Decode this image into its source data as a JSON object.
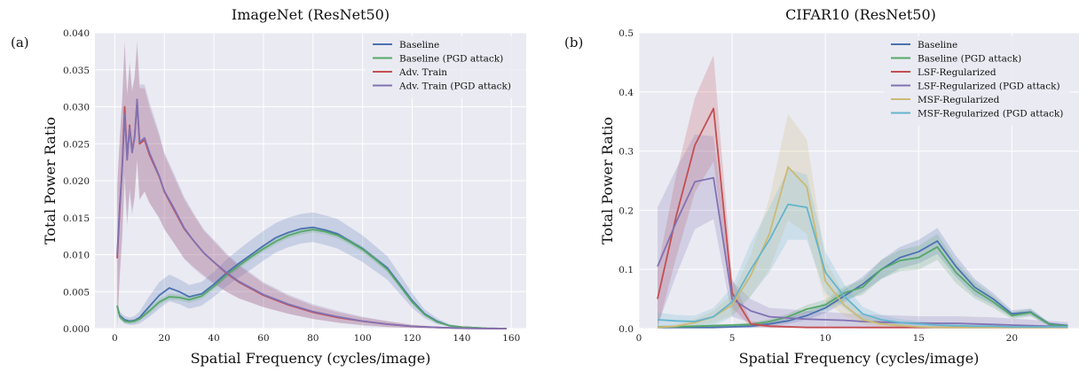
{
  "chart_data": [
    {
      "type": "line",
      "panel_label": "(a)",
      "title": "ImageNet (ResNet50)",
      "xlabel": "Spatial Frequency (cycles/image)",
      "ylabel": "Total Power Ratio",
      "xlim": [
        -8,
        166
      ],
      "ylim": [
        0,
        0.04
      ],
      "xticks": [
        0,
        20,
        40,
        60,
        80,
        100,
        120,
        140,
        160
      ],
      "yticks": [
        0.0,
        0.005,
        0.01,
        0.015,
        0.02,
        0.025,
        0.03,
        0.035,
        0.04
      ],
      "ytick_labels": [
        "0.000",
        "0.005",
        "0.010",
        "0.015",
        "0.020",
        "0.025",
        "0.030",
        "0.035",
        "0.040"
      ],
      "grid": true,
      "legend_position": "top-right",
      "series": [
        {
          "name": "Baseline",
          "color": "#4c72b0",
          "x": [
            1,
            2,
            4,
            6,
            8,
            10,
            14,
            18,
            22,
            26,
            30,
            35,
            40,
            45,
            50,
            55,
            60,
            65,
            70,
            75,
            80,
            85,
            90,
            95,
            100,
            105,
            110,
            115,
            120,
            125,
            130,
            135,
            140,
            150,
            158
          ],
          "y": [
            0.003,
            0.0018,
            0.0012,
            0.001,
            0.0011,
            0.0015,
            0.003,
            0.0045,
            0.0055,
            0.005,
            0.0043,
            0.0047,
            0.006,
            0.0075,
            0.0088,
            0.01,
            0.0112,
            0.0123,
            0.013,
            0.0135,
            0.0137,
            0.0133,
            0.0128,
            0.0118,
            0.0108,
            0.0095,
            0.0082,
            0.006,
            0.0038,
            0.002,
            0.001,
            0.0004,
            0.0002,
            5e-05,
            0.0
          ],
          "band": [
            0.0005,
            0.0005,
            0.0005,
            0.0005,
            0.0006,
            0.0008,
            0.0014,
            0.0018,
            0.0018,
            0.0017,
            0.0016,
            0.0016,
            0.0017,
            0.0018,
            0.0019,
            0.002,
            0.002,
            0.002,
            0.002,
            0.002,
            0.002,
            0.002,
            0.002,
            0.0019,
            0.0018,
            0.0017,
            0.0016,
            0.0013,
            0.001,
            0.0006,
            0.0004,
            0.0002,
            0.0001,
            5e-05,
            0.0
          ]
        },
        {
          "name": "Baseline (PGD attack)",
          "color": "#55a868",
          "x": [
            1,
            2,
            4,
            6,
            8,
            10,
            14,
            18,
            22,
            26,
            30,
            35,
            40,
            45,
            50,
            55,
            60,
            65,
            70,
            75,
            80,
            85,
            90,
            95,
            100,
            105,
            110,
            115,
            120,
            125,
            130,
            135,
            140,
            150,
            158
          ],
          "y": [
            0.0031,
            0.0016,
            0.001,
            0.0009,
            0.001,
            0.0013,
            0.0024,
            0.0036,
            0.0043,
            0.0042,
            0.0039,
            0.0044,
            0.0057,
            0.0072,
            0.0085,
            0.0097,
            0.0108,
            0.0118,
            0.0126,
            0.0131,
            0.0134,
            0.0131,
            0.0126,
            0.0117,
            0.0107,
            0.0094,
            0.008,
            0.0058,
            0.0036,
            0.0019,
            0.0009,
            0.0004,
            0.0002,
            5e-05,
            0.0
          ],
          "band": [
            0.0003,
            0.0003,
            0.0003,
            0.0003,
            0.0003,
            0.0003,
            0.0004,
            0.0004,
            0.0004,
            0.0004,
            0.0004,
            0.0004,
            0.0004,
            0.0004,
            0.0004,
            0.0004,
            0.0004,
            0.0004,
            0.0004,
            0.0004,
            0.0004,
            0.0004,
            0.0004,
            0.0004,
            0.0004,
            0.0004,
            0.0004,
            0.0003,
            0.0003,
            0.0002,
            0.0001,
            0.0001,
            0.0,
            0.0,
            0.0
          ]
        },
        {
          "name": "Adv. Train",
          "color": "#c44e52",
          "x": [
            1,
            2,
            3,
            4,
            5,
            6,
            7,
            8,
            9,
            10,
            12,
            14,
            16,
            18,
            20,
            24,
            28,
            32,
            36,
            40,
            45,
            50,
            60,
            70,
            80,
            90,
            100,
            110,
            120,
            130,
            140,
            150,
            158
          ],
          "y": [
            0.0095,
            0.016,
            0.022,
            0.03,
            0.023,
            0.0275,
            0.024,
            0.026,
            0.0305,
            0.025,
            0.0255,
            0.0235,
            0.022,
            0.0205,
            0.0185,
            0.016,
            0.0135,
            0.0118,
            0.0102,
            0.009,
            0.0075,
            0.0063,
            0.0045,
            0.0032,
            0.0022,
            0.0015,
            0.001,
            0.0006,
            0.0003,
            0.00015,
            5e-05,
            0.0,
            0.0
          ],
          "band": [
            0.0095,
            0.009,
            0.009,
            0.009,
            0.0085,
            0.0085,
            0.008,
            0.008,
            0.0078,
            0.0075,
            0.007,
            0.0065,
            0.006,
            0.0055,
            0.005,
            0.0045,
            0.004,
            0.0035,
            0.003,
            0.0028,
            0.0025,
            0.0022,
            0.0016,
            0.0012,
            0.0009,
            0.0007,
            0.0005,
            0.0004,
            0.0002,
            0.0001,
            5e-05,
            0.0,
            0.0
          ]
        },
        {
          "name": "Adv. Train (PGD attack)",
          "color": "#8172b3",
          "x": [
            1,
            2,
            3,
            4,
            5,
            6,
            7,
            8,
            9,
            10,
            12,
            14,
            16,
            18,
            20,
            24,
            28,
            32,
            36,
            40,
            45,
            50,
            60,
            70,
            80,
            90,
            100,
            110,
            120,
            130,
            140,
            150,
            158
          ],
          "y": [
            0.01,
            0.0165,
            0.0215,
            0.029,
            0.0228,
            0.0272,
            0.0238,
            0.0258,
            0.031,
            0.0252,
            0.0258,
            0.0238,
            0.0222,
            0.0206,
            0.0186,
            0.0162,
            0.0136,
            0.0118,
            0.0102,
            0.009,
            0.0076,
            0.0064,
            0.0046,
            0.0033,
            0.0023,
            0.0016,
            0.001,
            0.0006,
            0.0003,
            0.00015,
            5e-05,
            0.0,
            0.0
          ],
          "band": [
            0.0095,
            0.0095,
            0.0095,
            0.0092,
            0.009,
            0.0088,
            0.0085,
            0.0082,
            0.008,
            0.0078,
            0.0072,
            0.0068,
            0.0063,
            0.0058,
            0.0052,
            0.0047,
            0.0042,
            0.0037,
            0.0032,
            0.003,
            0.0026,
            0.0023,
            0.0017,
            0.0013,
            0.001,
            0.0008,
            0.0006,
            0.0004,
            0.0002,
            0.0001,
            5e-05,
            0.0,
            0.0
          ]
        }
      ]
    },
    {
      "type": "line",
      "panel_label": "(b)",
      "title": "CIFAR10 (ResNet50)",
      "xlabel": "Spatial Frequency (cycles/image)",
      "ylabel": "Total Power Ratio",
      "xlim": [
        0,
        23.6
      ],
      "ylim": [
        0,
        0.5
      ],
      "xticks": [
        0,
        5,
        10,
        15,
        20
      ],
      "yticks": [
        0.0,
        0.1,
        0.2,
        0.3,
        0.4,
        0.5
      ],
      "ytick_labels": [
        "0.0",
        "0.1",
        "0.2",
        "0.3",
        "0.4",
        "0.5"
      ],
      "grid": true,
      "legend_position": "top-right",
      "series": [
        {
          "name": "Baseline",
          "color": "#4c72b0",
          "x": [
            1,
            2,
            3,
            4,
            5,
            6,
            7,
            8,
            9,
            10,
            11,
            12,
            13,
            14,
            15,
            16,
            17,
            18,
            19,
            20,
            21,
            22,
            23
          ],
          "y": [
            0.002,
            0.002,
            0.002,
            0.002,
            0.003,
            0.004,
            0.008,
            0.013,
            0.022,
            0.035,
            0.055,
            0.075,
            0.1,
            0.12,
            0.13,
            0.148,
            0.105,
            0.07,
            0.05,
            0.025,
            0.028,
            0.008,
            0.005
          ],
          "band": [
            0.002,
            0.002,
            0.002,
            0.002,
            0.002,
            0.003,
            0.004,
            0.005,
            0.007,
            0.009,
            0.011,
            0.013,
            0.016,
            0.018,
            0.02,
            0.022,
            0.018,
            0.014,
            0.01,
            0.006,
            0.006,
            0.003,
            0.002
          ]
        },
        {
          "name": "Baseline (PGD attack)",
          "color": "#55a868",
          "x": [
            1,
            2,
            3,
            4,
            5,
            6,
            7,
            8,
            9,
            10,
            11,
            12,
            13,
            14,
            15,
            16,
            17,
            18,
            19,
            20,
            21,
            22,
            23
          ],
          "y": [
            0.003,
            0.003,
            0.004,
            0.005,
            0.006,
            0.007,
            0.012,
            0.02,
            0.033,
            0.04,
            0.06,
            0.07,
            0.1,
            0.115,
            0.12,
            0.138,
            0.095,
            0.065,
            0.045,
            0.022,
            0.027,
            0.007,
            0.004
          ],
          "band": [
            0.002,
            0.002,
            0.002,
            0.002,
            0.002,
            0.003,
            0.004,
            0.005,
            0.007,
            0.009,
            0.011,
            0.013,
            0.016,
            0.018,
            0.02,
            0.022,
            0.018,
            0.014,
            0.01,
            0.006,
            0.006,
            0.003,
            0.002
          ]
        },
        {
          "name": "LSF-Regularized",
          "color": "#c44e52",
          "x": [
            1,
            2,
            3,
            4,
            5,
            6,
            7,
            8,
            9,
            10,
            11,
            12,
            13,
            14,
            15,
            16,
            17,
            18,
            19,
            20,
            21,
            22,
            23
          ],
          "y": [
            0.05,
            0.19,
            0.31,
            0.372,
            0.06,
            0.008,
            0.004,
            0.003,
            0.002,
            0.002,
            0.002,
            0.002,
            0.002,
            0.002,
            0.002,
            0.002,
            0.002,
            0.002,
            0.002,
            0.002,
            0.002,
            0.002,
            0.002
          ],
          "band": [
            0.05,
            0.07,
            0.08,
            0.09,
            0.025,
            0.005,
            0.003,
            0.002,
            0.001,
            0.001,
            0.001,
            0.001,
            0.001,
            0.001,
            0.001,
            0.001,
            0.001,
            0.001,
            0.001,
            0.001,
            0.001,
            0.001,
            0.001
          ]
        },
        {
          "name": "LSF-Regularized (PGD attack)",
          "color": "#8172b3",
          "x": [
            1,
            2,
            3,
            4,
            5,
            6,
            7,
            8,
            9,
            10,
            11,
            12,
            13,
            14,
            15,
            16,
            17,
            18,
            19,
            20,
            21,
            22,
            23
          ],
          "y": [
            0.105,
            0.18,
            0.248,
            0.255,
            0.05,
            0.03,
            0.02,
            0.018,
            0.016,
            0.015,
            0.014,
            0.012,
            0.011,
            0.01,
            0.009,
            0.009,
            0.009,
            0.008,
            0.007,
            0.006,
            0.005,
            0.004,
            0.003
          ],
          "band": [
            0.1,
            0.09,
            0.08,
            0.07,
            0.03,
            0.02,
            0.015,
            0.015,
            0.014,
            0.013,
            0.012,
            0.012,
            0.012,
            0.012,
            0.012,
            0.012,
            0.012,
            0.012,
            0.012,
            0.011,
            0.01,
            0.009,
            0.008
          ]
        },
        {
          "name": "MSF-Regularized",
          "color": "#ccb974",
          "x": [
            1,
            2,
            3,
            4,
            5,
            6,
            7,
            8,
            9,
            10,
            11,
            12,
            13,
            14,
            15,
            16,
            17,
            18,
            19,
            20,
            21,
            22,
            23
          ],
          "y": [
            0.002,
            0.004,
            0.01,
            0.02,
            0.04,
            0.09,
            0.16,
            0.273,
            0.24,
            0.08,
            0.04,
            0.015,
            0.008,
            0.005,
            0.003,
            0.002,
            0.002,
            0.002,
            0.002,
            0.002,
            0.002,
            0.002,
            0.002
          ],
          "band": [
            0.002,
            0.003,
            0.006,
            0.01,
            0.018,
            0.035,
            0.06,
            0.09,
            0.08,
            0.035,
            0.018,
            0.008,
            0.005,
            0.003,
            0.002,
            0.001,
            0.001,
            0.001,
            0.001,
            0.001,
            0.001,
            0.001,
            0.001
          ]
        },
        {
          "name": "MSF-Regularized (PGD attack)",
          "color": "#64b5cd",
          "x": [
            1,
            2,
            3,
            4,
            5,
            6,
            7,
            8,
            9,
            10,
            11,
            12,
            13,
            14,
            15,
            16,
            17,
            18,
            19,
            20,
            21,
            22,
            23
          ],
          "y": [
            0.015,
            0.013,
            0.012,
            0.02,
            0.045,
            0.1,
            0.15,
            0.21,
            0.205,
            0.095,
            0.055,
            0.025,
            0.015,
            0.01,
            0.008,
            0.006,
            0.005,
            0.004,
            0.004,
            0.003,
            0.003,
            0.003,
            0.003
          ],
          "band": [
            0.012,
            0.01,
            0.01,
            0.015,
            0.025,
            0.045,
            0.055,
            0.06,
            0.055,
            0.035,
            0.02,
            0.012,
            0.008,
            0.006,
            0.005,
            0.004,
            0.003,
            0.003,
            0.003,
            0.002,
            0.002,
            0.002,
            0.002
          ]
        }
      ]
    }
  ]
}
